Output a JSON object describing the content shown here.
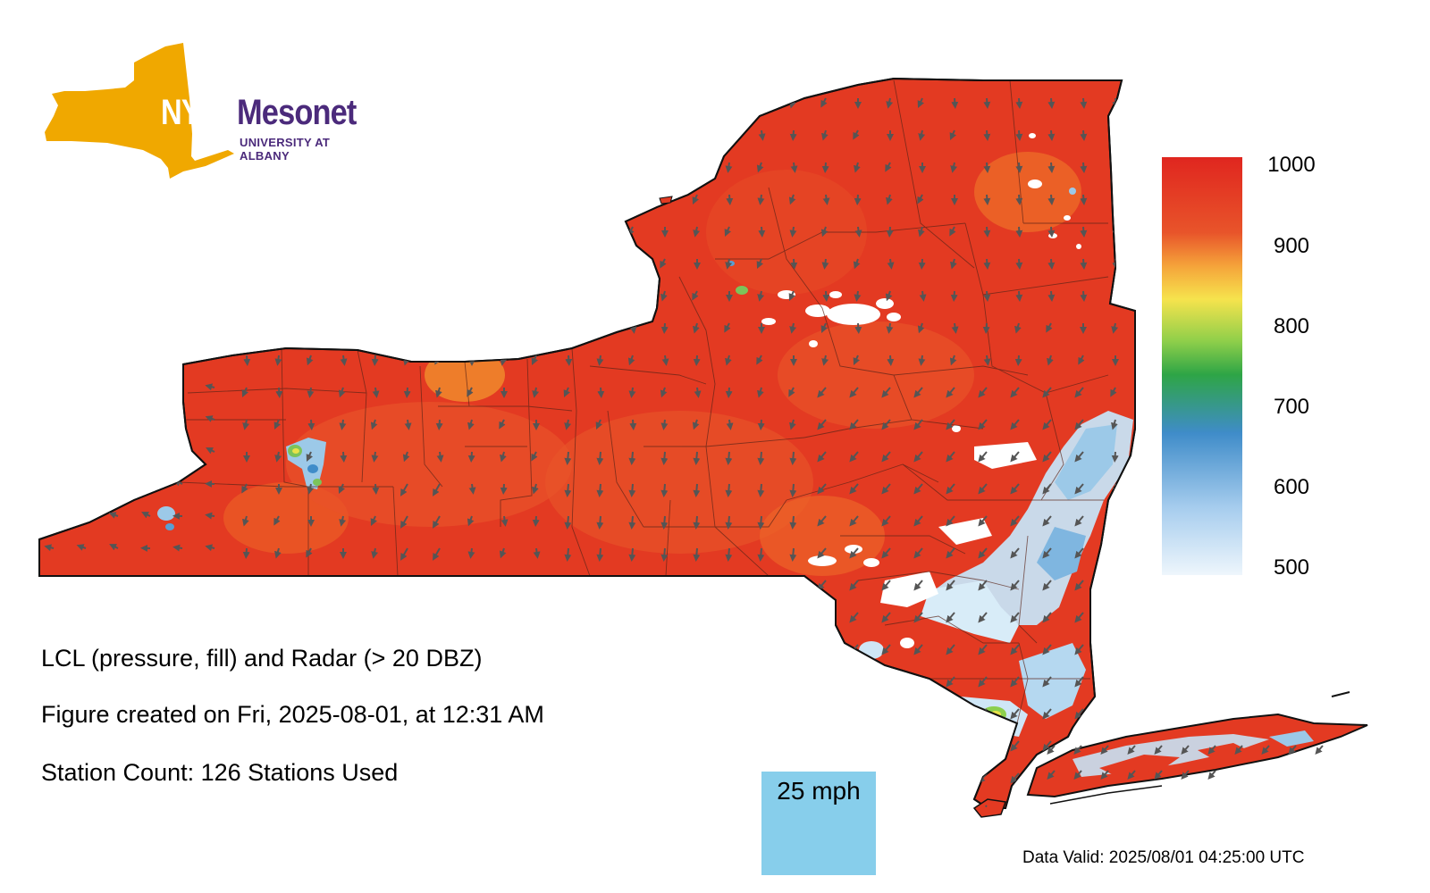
{
  "logo": {
    "nys": "NYS",
    "mesonet": "Mesonet",
    "university": "UNIVERSITY AT ALBANY"
  },
  "map": {
    "title": "LCL (pressure, fill) and Radar (> 20 DBZ)",
    "created": "Figure created on Fri, 2025-08-01, at 12:31 AM",
    "station_count": "Station Count: 126 Stations Used",
    "valid": "Data Valid: 2025/08/01 04:25:00 UTC",
    "scale_label": "25 mph",
    "colors": {
      "fill_main": "#e33a22",
      "fill_mid": "#e85a26",
      "fill_warm": "#f08a2c",
      "outline": "#111111",
      "county_line": "#5a2418",
      "wind_arrow": "#555555",
      "scale_bg": "#87ceeb",
      "radar_light": "#d6ecf8",
      "radar_mid": "#9cc9e8",
      "radar_dark": "#5aa0d4",
      "radar_white": "#ffffff",
      "radar_green": "#7cc35a",
      "radar_yellow": "#e8e24a"
    }
  },
  "legend": {
    "ticks": [
      "1000",
      "900",
      "800",
      "700",
      "600",
      "500"
    ],
    "stops": [
      "#e0261f",
      "#e8542a",
      "#f5a33a",
      "#f6e34d",
      "#8fcf4a",
      "#2ea546",
      "#3f8cc9",
      "#a7cdee",
      "#eef6fc"
    ]
  }
}
